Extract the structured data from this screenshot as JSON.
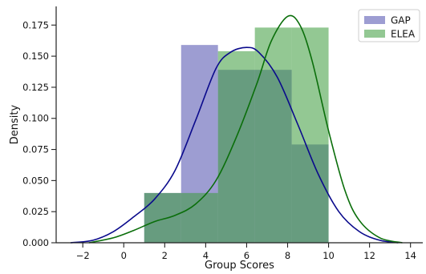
{
  "chart_data": {
    "type": "bar",
    "title": "",
    "xlabel": "Group Scores",
    "ylabel": "Density",
    "xlim": [
      -3.3,
      14.6
    ],
    "ylim": [
      0,
      0.19
    ],
    "x_ticks": [
      -2,
      0,
      2,
      4,
      6,
      8,
      10,
      12,
      14
    ],
    "x_tick_labels": [
      "−2",
      "0",
      "2",
      "4",
      "6",
      "8",
      "10",
      "12",
      "14"
    ],
    "y_ticks": [
      0.0,
      0.025,
      0.05,
      0.075,
      0.1,
      0.125,
      0.15,
      0.175
    ],
    "y_tick_labels": [
      "0.000",
      "0.025",
      "0.050",
      "0.075",
      "0.100",
      "0.125",
      "0.150",
      "0.175"
    ],
    "grid": false,
    "legend_position": "top-right",
    "series": [
      {
        "name": "GAP",
        "color": "#4c4cad",
        "line_color": "#0a0a8c",
        "histogram": {
          "bin_edges": [
            1.0,
            2.8,
            4.6,
            6.4,
            8.2,
            10.0
          ],
          "densities": [
            0.04,
            0.159,
            0.139,
            0.139,
            0.079
          ]
        },
        "kde": {
          "x": [
            -2.6,
            -1.5,
            -0.5,
            0.5,
            1.5,
            2.5,
            3.5,
            4.5,
            5.2,
            6.0,
            6.6,
            7.5,
            8.5,
            9.5,
            10.5,
            11.5,
            12.5,
            13.4
          ],
          "y": [
            0.0,
            0.002,
            0.009,
            0.021,
            0.035,
            0.058,
            0.098,
            0.14,
            0.153,
            0.157,
            0.153,
            0.133,
            0.095,
            0.055,
            0.025,
            0.009,
            0.002,
            0.0
          ]
        }
      },
      {
        "name": "ELEA",
        "color": "#3a9a3a",
        "line_color": "#0a6e0a",
        "histogram": {
          "bin_edges": [
            1.0,
            2.8,
            4.6,
            6.4,
            8.2,
            10.0
          ],
          "densities": [
            0.04,
            0.04,
            0.154,
            0.173,
            0.173
          ]
        },
        "kde": {
          "x": [
            -1.7,
            -0.5,
            0.5,
            1.5,
            2.5,
            3.5,
            4.5,
            5.5,
            6.5,
            7.2,
            8.0,
            8.6,
            9.2,
            10.0,
            10.8,
            11.5,
            12.5,
            13.6
          ],
          "y": [
            0.0,
            0.004,
            0.01,
            0.017,
            0.022,
            0.031,
            0.05,
            0.085,
            0.128,
            0.162,
            0.182,
            0.175,
            0.146,
            0.09,
            0.042,
            0.018,
            0.004,
            0.0
          ]
        }
      }
    ]
  }
}
